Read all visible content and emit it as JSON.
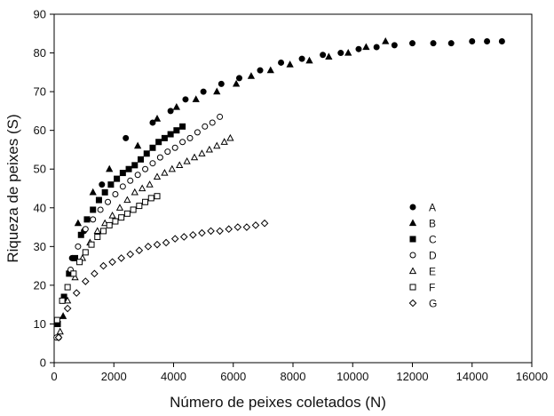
{
  "chart_data": {
    "type": "scatter",
    "title": "",
    "xlabel": "Número de peixes coletados (N)",
    "ylabel": "Riqueza de peixes (S)",
    "xlim": [
      0,
      16000
    ],
    "ylim": [
      0,
      90
    ],
    "xticks": [
      0,
      2000,
      4000,
      6000,
      8000,
      10000,
      12000,
      14000,
      16000
    ],
    "yticks": [
      0,
      10,
      20,
      30,
      40,
      50,
      60,
      70,
      80,
      90
    ],
    "grid": false,
    "legend_position": "right-middle",
    "series": [
      {
        "name": "A",
        "marker": "filled-circle",
        "x": [
          150,
          600,
          1000,
          1600,
          2400,
          3300,
          3900,
          4400,
          5000,
          5600,
          6200,
          6900,
          7600,
          8300,
          9000,
          9600,
          10200,
          10800,
          11400,
          12000,
          12700,
          13300,
          14000,
          14500,
          15000
        ],
        "y": [
          6.5,
          27,
          34,
          46,
          58,
          62,
          65,
          68,
          70,
          72,
          73.5,
          75.5,
          77.5,
          78.5,
          79.5,
          80,
          81,
          81.5,
          82,
          82.5,
          82.5,
          82.5,
          83,
          83,
          83
        ]
      },
      {
        "name": "B",
        "marker": "filled-triangle",
        "x": [
          300,
          800,
          1300,
          1850,
          2800,
          3450,
          4100,
          4750,
          5450,
          6100,
          6600,
          7250,
          7900,
          8550,
          9200,
          9850,
          10450,
          11100
        ],
        "y": [
          12,
          36,
          44,
          50,
          56,
          63,
          66,
          68,
          70,
          72,
          74,
          75.5,
          77,
          78,
          79,
          80,
          81.5,
          83
        ]
      },
      {
        "name": "C",
        "marker": "filled-square",
        "x": [
          120,
          330,
          500,
          700,
          900,
          1100,
          1300,
          1500,
          1700,
          1900,
          2100,
          2300,
          2500,
          2700,
          2900,
          3100,
          3300,
          3500,
          3700,
          3900,
          4100,
          4300
        ],
        "y": [
          10,
          17,
          23,
          27,
          33,
          37,
          39.5,
          42,
          44,
          46,
          47.5,
          49,
          50,
          51,
          52.5,
          54,
          55.5,
          57,
          58,
          59,
          60,
          61
        ]
      },
      {
        "name": "D",
        "marker": "open-circle",
        "x": [
          80,
          300,
          550,
          800,
          1050,
          1300,
          1550,
          1800,
          2050,
          2300,
          2550,
          2800,
          3050,
          3300,
          3550,
          3800,
          4050,
          4300,
          4550,
          4800,
          5050,
          5300,
          5550
        ],
        "y": [
          6.5,
          16,
          24,
          30,
          34.5,
          37,
          39.5,
          41.5,
          43.5,
          45.5,
          47,
          48.5,
          50,
          51.5,
          53,
          54.5,
          55.5,
          57,
          58,
          59.5,
          61,
          62,
          63.5
        ]
      },
      {
        "name": "E",
        "marker": "open-triangle",
        "x": [
          200,
          450,
          700,
          950,
          1200,
          1450,
          1700,
          1950,
          2200,
          2450,
          2700,
          2950,
          3200,
          3450,
          3700,
          3950,
          4200,
          4450,
          4700,
          4950,
          5200,
          5450,
          5700,
          5900
        ],
        "y": [
          8,
          16,
          22,
          27,
          31,
          34,
          36,
          38,
          40,
          42,
          44,
          45,
          46,
          48,
          49,
          50,
          51,
          52,
          53,
          54,
          55,
          56,
          57,
          58
        ]
      },
      {
        "name": "F",
        "marker": "open-square",
        "x": [
          100,
          270,
          450,
          650,
          850,
          1050,
          1250,
          1450,
          1650,
          1850,
          2050,
          2250,
          2450,
          2650,
          2850,
          3050,
          3250,
          3450
        ],
        "y": [
          11,
          16,
          19.5,
          23,
          26,
          28.5,
          30.5,
          32.5,
          34,
          35.5,
          36.5,
          37.5,
          38.5,
          39.5,
          40.5,
          41.5,
          42.5,
          43
        ]
      },
      {
        "name": "G",
        "marker": "open-diamond",
        "x": [
          150,
          450,
          750,
          1050,
          1350,
          1650,
          1950,
          2250,
          2550,
          2850,
          3150,
          3450,
          3750,
          4050,
          4350,
          4650,
          4950,
          5250,
          5550,
          5850,
          6150,
          6450,
          6750,
          7050
        ],
        "y": [
          6.5,
          14,
          18,
          21,
          23,
          25,
          26,
          27,
          28,
          29,
          30,
          30.5,
          31,
          32,
          32.5,
          33,
          33.5,
          34,
          34,
          34.5,
          35,
          35,
          35.5,
          36
        ]
      }
    ]
  }
}
